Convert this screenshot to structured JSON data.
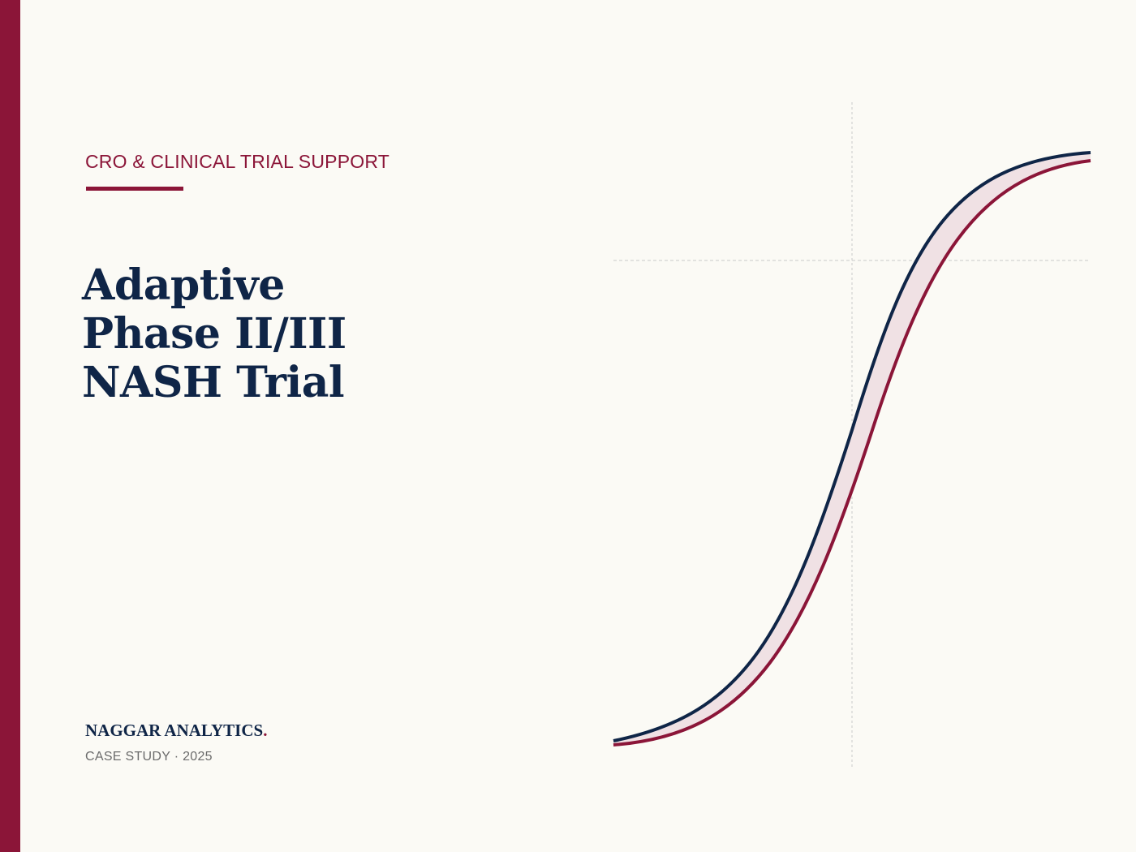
{
  "header": {
    "eyebrow": "CRO & CLINICAL TRIAL SUPPORT"
  },
  "title": {
    "line1": "Adaptive",
    "line2": "Phase II/III",
    "line3": "NASH Trial"
  },
  "footer": {
    "brand": "NAGGAR ANALYTICS",
    "brand_dot": ".",
    "subline": "CASE STUDY · 2025"
  },
  "colors": {
    "accent": "#8b1538",
    "navy": "#0f2547",
    "background": "#fbfaf5",
    "band_fill": "#f0e1e4",
    "guide": "#c9c9c9"
  }
}
